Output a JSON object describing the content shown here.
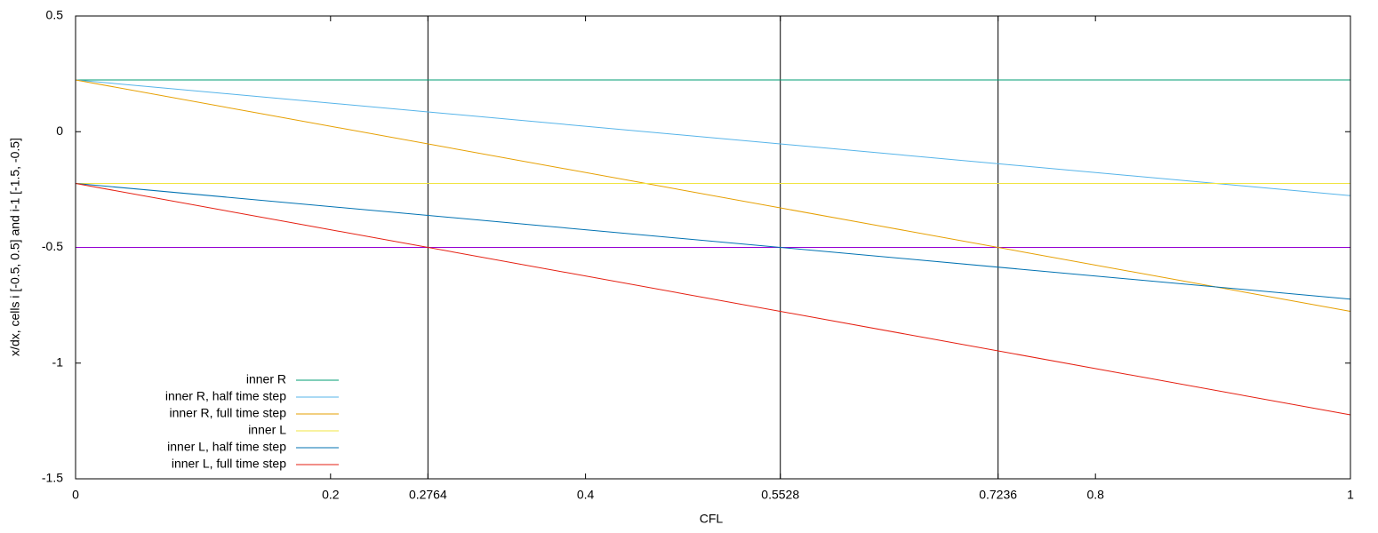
{
  "chart_data": {
    "type": "line",
    "xlabel": "CFL",
    "ylabel": "x/dx, cells i [-0.5, 0.5] and i-1 [-1.5, -0.5]",
    "x": [
      0,
      1
    ],
    "series": [
      {
        "name": "inner R",
        "color": "#009e73",
        "values": [
          0.2236,
          0.2236
        ]
      },
      {
        "name": "inner R, half time step",
        "color": "#56b4e9",
        "values": [
          0.2236,
          -0.2764
        ]
      },
      {
        "name": "inner R, full time step",
        "color": "#e69f00",
        "values": [
          0.2236,
          -0.7764
        ]
      },
      {
        "name": "inner L",
        "color": "#f0e442",
        "values": [
          -0.2236,
          -0.2236
        ]
      },
      {
        "name": "inner L, half time step",
        "color": "#0072b2",
        "values": [
          -0.2236,
          -0.7236
        ]
      },
      {
        "name": "inner L, full time step",
        "color": "#e51e10",
        "values": [
          -0.2236,
          -1.2236
        ]
      }
    ],
    "hlines": {
      "values": [
        -0.5
      ],
      "color": "#9400d3"
    },
    "vlines": {
      "values": [
        0.2764,
        0.5528,
        0.7236
      ],
      "color": "#000000"
    },
    "xlim": [
      0,
      1
    ],
    "ylim": [
      -1.5,
      0.5
    ],
    "xticks": [
      0,
      0.2,
      0.2764,
      0.4,
      0.5528,
      0.7236,
      0.8,
      1
    ],
    "yticks": [
      0.5,
      0,
      -0.5,
      -1,
      -1.5
    ],
    "legend": "bottom-left"
  }
}
